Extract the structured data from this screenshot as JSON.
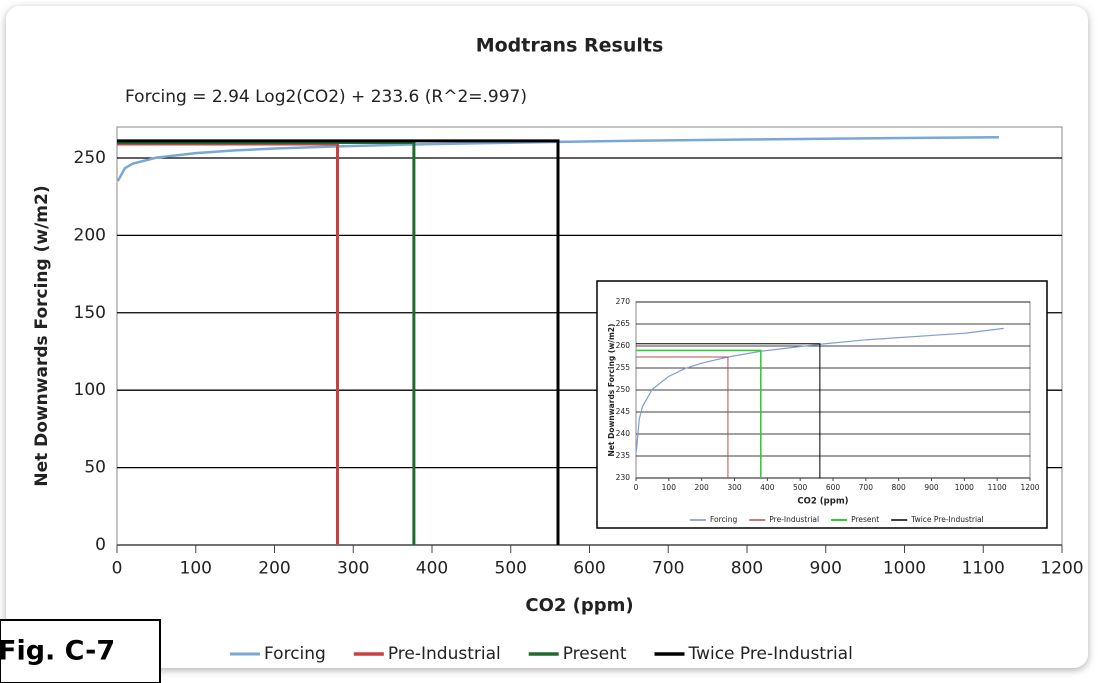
{
  "figure_label": "Fig. C-7",
  "chart_data": [
    {
      "type": "line",
      "title": "Modtrans Results",
      "annotation": "Forcing = 2.94 Log2(CO2) + 233.6 (R^2=.997)",
      "xlabel": "CO2 (ppm)",
      "ylabel": "Net Downwards Forcing (w/m2)",
      "xlim": [
        0,
        1200
      ],
      "xticks": [
        0,
        100,
        200,
        300,
        400,
        500,
        600,
        700,
        800,
        900,
        1000,
        1100,
        1200
      ],
      "ylim": [
        0,
        270
      ],
      "yticks": [
        0,
        50,
        100,
        150,
        200,
        250
      ],
      "grid": true,
      "series": [
        {
          "name": "Forcing",
          "color": "#79a7d6",
          "x": [
            1,
            10,
            20,
            50,
            100,
            150,
            200,
            280,
            380,
            560,
            700,
            800,
            900,
            1000,
            1120
          ],
          "values": [
            235,
            243.4,
            246.3,
            250.2,
            253.1,
            254.9,
            256.1,
            257.5,
            258.8,
            260.4,
            261.4,
            261.9,
            262.4,
            262.9,
            263.4
          ]
        },
        {
          "name": "Pre-Industrial",
          "color": "#c8403f",
          "x": [
            0,
            280,
            280
          ],
          "values": [
            259,
            259,
            0
          ]
        },
        {
          "name": "Present",
          "color": "#1f6b2e",
          "x": [
            0,
            377,
            377
          ],
          "values": [
            260,
            260,
            0
          ]
        },
        {
          "name": "Twice Pre-Industrial",
          "color": "#000000",
          "x": [
            0,
            560,
            560
          ],
          "values": [
            261,
            261,
            0
          ]
        }
      ]
    },
    {
      "type": "line",
      "xlabel": "CO2 (ppm)",
      "ylabel": "Net Downwards Forcing (w/m2)",
      "xlim": [
        0,
        1200
      ],
      "xticks": [
        0,
        100,
        200,
        300,
        400,
        500,
        600,
        700,
        800,
        900,
        1000,
        1100,
        1200
      ],
      "ylim": [
        230,
        270
      ],
      "yticks": [
        230,
        235,
        240,
        245,
        250,
        255,
        260,
        265,
        270
      ],
      "grid": true,
      "series": [
        {
          "name": "Forcing",
          "color": "#7f9fd4",
          "x": [
            1,
            10,
            20,
            50,
            100,
            150,
            200,
            280,
            380,
            560,
            700,
            800,
            900,
            1000,
            1120
          ],
          "values": [
            236,
            243.4,
            246.3,
            250.2,
            253.1,
            254.9,
            256.1,
            257.5,
            258.8,
            260.4,
            261.4,
            261.9,
            262.4,
            262.9,
            264
          ]
        },
        {
          "name": "Pre-Industrial",
          "color": "#b5504f",
          "x": [
            0,
            280,
            280
          ],
          "values": [
            257.5,
            257.5,
            230
          ]
        },
        {
          "name": "Present",
          "color": "#33cc33",
          "x": [
            0,
            380,
            380
          ],
          "values": [
            259,
            259,
            230
          ]
        },
        {
          "name": "Twice Pre-Industrial",
          "color": "#000000",
          "x": [
            0,
            560,
            560
          ],
          "values": [
            260.5,
            260.5,
            230
          ]
        }
      ]
    }
  ]
}
